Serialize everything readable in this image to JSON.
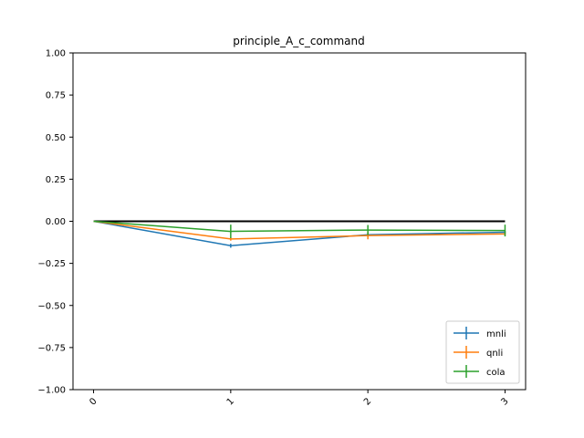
{
  "chart_data": {
    "type": "line",
    "title": "principle_A_c_command",
    "xlabel": "",
    "ylabel": "",
    "x": [
      0,
      1,
      2,
      3
    ],
    "x_tick_labels": [
      "0",
      "1",
      "2",
      "3"
    ],
    "xlim": [
      -0.15,
      3.15
    ],
    "ylim": [
      -1.0,
      1.0
    ],
    "y_ticks": [
      1.0,
      0.75,
      0.5,
      0.25,
      0.0,
      -0.25,
      -0.5,
      -0.75,
      -1.0
    ],
    "y_tick_labels": [
      "1.00",
      "0.75",
      "0.50",
      "0.25",
      "0.00",
      "−0.25",
      "−0.50",
      "−0.75",
      "−1.00"
    ],
    "grid": false,
    "legend_position": "lower-right",
    "baseline": {
      "y": 0,
      "color": "#000000"
    },
    "series": [
      {
        "name": "mnli",
        "color": "#1f77b4",
        "values": [
          0.0,
          -0.145,
          -0.08,
          -0.065
        ],
        "errors": [
          0,
          0.012,
          0.008,
          0.008
        ]
      },
      {
        "name": "qnli",
        "color": "#ff7f0e",
        "values": [
          0.0,
          -0.105,
          -0.085,
          -0.075
        ],
        "errors": [
          0,
          0.01,
          0.022,
          0.01
        ]
      },
      {
        "name": "cola",
        "color": "#2ca02c",
        "values": [
          0.0,
          -0.06,
          -0.052,
          -0.055
        ],
        "errors": [
          0,
          0.04,
          0.03,
          0.035
        ]
      }
    ]
  }
}
